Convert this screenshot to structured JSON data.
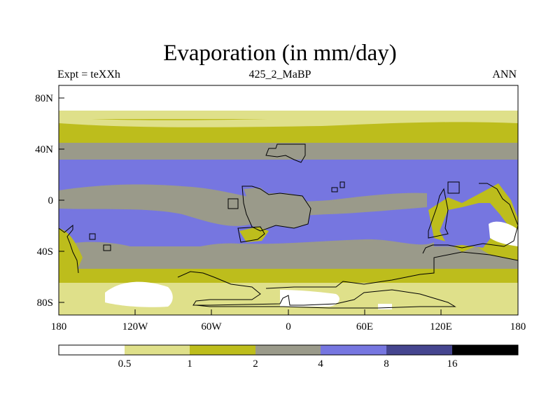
{
  "title": "Evaporation (in mm/day)",
  "experiment_label": "Expt = teXXh",
  "period_label": "425_2_MaBP",
  "season_label": "ANN",
  "lat_ticks": [
    "80N",
    "40N",
    "0",
    "40S",
    "80S"
  ],
  "lon_ticks": [
    "180",
    "120W",
    "60W",
    "0",
    "60E",
    "120E",
    "180"
  ],
  "colorbar": {
    "labels": [
      "0.5",
      "1",
      "2",
      "4",
      "8",
      "16"
    ],
    "colors": [
      "#ffffff",
      "#dfe08a",
      "#bdbd1c",
      "#9a9a8a",
      "#7676e0",
      "#45458f",
      "#000000"
    ]
  },
  "palette": {
    "white": "#ffffff",
    "pale_yellow": "#dfe08a",
    "olive": "#bdbd1c",
    "gray": "#9a9a8a",
    "blue": "#7676e0"
  }
}
